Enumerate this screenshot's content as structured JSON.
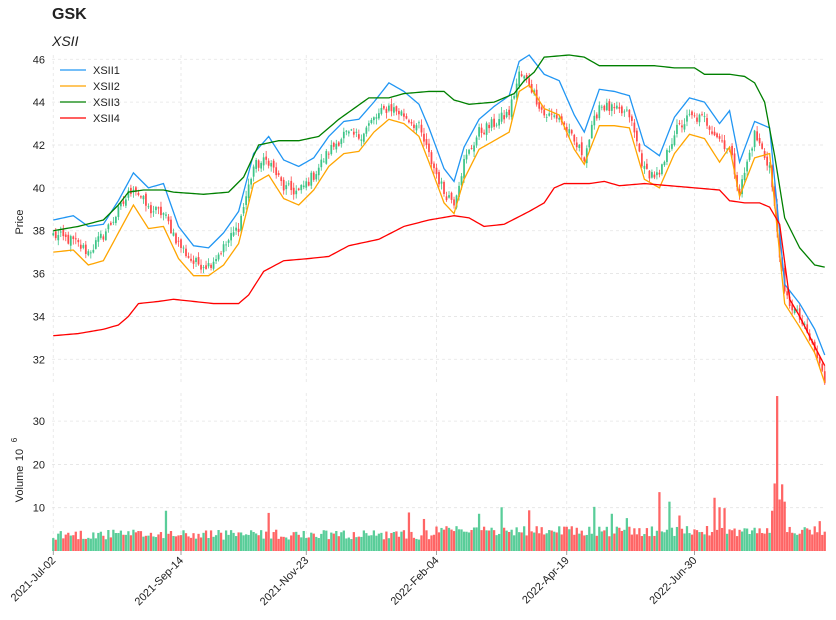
{
  "chart_data": {
    "type": "candlestick",
    "title": "GSK",
    "subtitle": "XSII",
    "price_panel": {
      "ylabel": "Price",
      "ylim": [
        30.8,
        46.2
      ],
      "yticks": [
        32,
        34,
        36,
        38,
        40,
        42,
        44,
        46
      ]
    },
    "volume_panel": {
      "ylabel": "Volume",
      "yexp": "6",
      "ylim": [
        0,
        36.5
      ],
      "yticks": [
        10,
        20,
        30
      ]
    },
    "x_tick_labels": [
      "2021-Jul-02",
      "2021-Sep-14",
      "2021-Nov-23",
      "2022-Feb-04",
      "2022-Apr-19",
      "2022-Jun-30"
    ],
    "x_tick_index": [
      0,
      51,
      101,
      153,
      205,
      256
    ],
    "n_bars": 309,
    "colors": {
      "up": "#3cc487",
      "down": "#ff4a4a",
      "xsii1": "#2196f3",
      "xsii2": "#ffa500",
      "xsii3": "#008000",
      "xsii4": "#ff0000"
    },
    "close_anchors": [
      [
        0,
        37.8
      ],
      [
        8,
        37.5
      ],
      [
        14,
        37.0
      ],
      [
        20,
        37.8
      ],
      [
        26,
        38.9
      ],
      [
        32,
        40.1
      ],
      [
        38,
        39.0
      ],
      [
        44,
        38.8
      ],
      [
        50,
        37.4
      ],
      [
        56,
        36.5
      ],
      [
        62,
        36.4
      ],
      [
        68,
        37.2
      ],
      [
        74,
        38.2
      ],
      [
        80,
        41.0
      ],
      [
        86,
        41.3
      ],
      [
        92,
        40.0
      ],
      [
        98,
        39.8
      ],
      [
        104,
        40.6
      ],
      [
        110,
        41.7
      ],
      [
        116,
        42.5
      ],
      [
        122,
        42.4
      ],
      [
        128,
        43.2
      ],
      [
        134,
        43.8
      ],
      [
        140,
        43.4
      ],
      [
        146,
        42.8
      ],
      [
        150,
        41.5
      ],
      [
        156,
        39.8
      ],
      [
        160,
        39.4
      ],
      [
        164,
        41.2
      ],
      [
        170,
        42.6
      ],
      [
        176,
        43.0
      ],
      [
        182,
        43.5
      ],
      [
        186,
        45.3
      ],
      [
        190,
        44.9
      ],
      [
        196,
        43.4
      ],
      [
        202,
        43.3
      ],
      [
        208,
        42.1
      ],
      [
        212,
        41.5
      ],
      [
        218,
        43.9
      ],
      [
        224,
        43.6
      ],
      [
        230,
        43.4
      ],
      [
        236,
        40.8
      ],
      [
        242,
        40.5
      ],
      [
        248,
        42.6
      ],
      [
        254,
        43.3
      ],
      [
        260,
        43.2
      ],
      [
        266,
        42.3
      ],
      [
        270,
        41.8
      ],
      [
        274,
        39.8
      ],
      [
        280,
        42.5
      ],
      [
        286,
        41.0
      ],
      [
        292,
        35.0
      ],
      [
        298,
        33.9
      ],
      [
        304,
        32.4
      ],
      [
        308,
        31.0
      ]
    ],
    "series": [
      {
        "name": "XSII1",
        "anchors": [
          [
            0,
            38.5
          ],
          [
            8,
            38.7
          ],
          [
            14,
            38.2
          ],
          [
            20,
            38.3
          ],
          [
            26,
            39.4
          ],
          [
            32,
            40.7
          ],
          [
            38,
            40.0
          ],
          [
            44,
            40.2
          ],
          [
            50,
            38.2
          ],
          [
            56,
            37.3
          ],
          [
            62,
            37.2
          ],
          [
            68,
            37.9
          ],
          [
            74,
            38.9
          ],
          [
            80,
            41.6
          ],
          [
            86,
            42.4
          ],
          [
            92,
            41.3
          ],
          [
            98,
            41.0
          ],
          [
            104,
            41.4
          ],
          [
            110,
            42.4
          ],
          [
            116,
            43.1
          ],
          [
            122,
            43.2
          ],
          [
            128,
            44.0
          ],
          [
            134,
            44.9
          ],
          [
            140,
            44.5
          ],
          [
            146,
            43.9
          ],
          [
            150,
            42.8
          ],
          [
            156,
            40.9
          ],
          [
            160,
            40.3
          ],
          [
            164,
            41.9
          ],
          [
            170,
            43.2
          ],
          [
            176,
            43.8
          ],
          [
            182,
            44.3
          ],
          [
            186,
            45.9
          ],
          [
            190,
            46.2
          ],
          [
            196,
            45.3
          ],
          [
            202,
            45.0
          ],
          [
            208,
            43.4
          ],
          [
            212,
            42.6
          ],
          [
            218,
            44.6
          ],
          [
            224,
            44.5
          ],
          [
            230,
            44.3
          ],
          [
            236,
            42.0
          ],
          [
            242,
            41.5
          ],
          [
            248,
            43.3
          ],
          [
            254,
            44.2
          ],
          [
            260,
            44.0
          ],
          [
            266,
            43.0
          ],
          [
            270,
            43.6
          ],
          [
            274,
            41.2
          ],
          [
            280,
            43.1
          ],
          [
            286,
            42.8
          ],
          [
            292,
            35.5
          ],
          [
            298,
            34.6
          ],
          [
            304,
            33.4
          ],
          [
            308,
            32.2
          ]
        ]
      },
      {
        "name": "XSII2",
        "anchors": [
          [
            0,
            37.0
          ],
          [
            8,
            37.1
          ],
          [
            14,
            36.4
          ],
          [
            20,
            36.6
          ],
          [
            26,
            37.9
          ],
          [
            32,
            39.2
          ],
          [
            38,
            38.1
          ],
          [
            44,
            38.2
          ],
          [
            50,
            36.7
          ],
          [
            56,
            35.9
          ],
          [
            62,
            35.9
          ],
          [
            68,
            36.4
          ],
          [
            74,
            37.4
          ],
          [
            80,
            40.2
          ],
          [
            86,
            40.6
          ],
          [
            92,
            39.5
          ],
          [
            98,
            39.2
          ],
          [
            104,
            39.9
          ],
          [
            110,
            41.0
          ],
          [
            116,
            41.6
          ],
          [
            122,
            41.7
          ],
          [
            128,
            42.6
          ],
          [
            134,
            43.2
          ],
          [
            140,
            43.0
          ],
          [
            146,
            42.4
          ],
          [
            150,
            41.2
          ],
          [
            156,
            39.3
          ],
          [
            160,
            38.8
          ],
          [
            164,
            40.4
          ],
          [
            170,
            41.8
          ],
          [
            176,
            42.2
          ],
          [
            182,
            42.6
          ],
          [
            186,
            44.5
          ],
          [
            190,
            44.8
          ],
          [
            196,
            43.7
          ],
          [
            202,
            43.4
          ],
          [
            208,
            41.8
          ],
          [
            212,
            41.1
          ],
          [
            218,
            42.9
          ],
          [
            224,
            42.9
          ],
          [
            230,
            42.8
          ],
          [
            236,
            40.4
          ],
          [
            242,
            40.0
          ],
          [
            248,
            41.6
          ],
          [
            254,
            42.5
          ],
          [
            260,
            42.3
          ],
          [
            266,
            41.2
          ],
          [
            270,
            41.9
          ],
          [
            274,
            39.6
          ],
          [
            280,
            41.4
          ],
          [
            286,
            41.6
          ],
          [
            292,
            34.6
          ],
          [
            298,
            33.5
          ],
          [
            304,
            32.3
          ],
          [
            308,
            30.9
          ]
        ]
      },
      {
        "name": "XSII3",
        "anchors": [
          [
            0,
            38.0
          ],
          [
            10,
            38.2
          ],
          [
            20,
            38.5
          ],
          [
            26,
            39.2
          ],
          [
            30,
            39.8
          ],
          [
            36,
            39.9
          ],
          [
            44,
            39.9
          ],
          [
            48,
            39.8
          ],
          [
            60,
            39.7
          ],
          [
            70,
            39.8
          ],
          [
            76,
            40.5
          ],
          [
            82,
            42.0
          ],
          [
            90,
            42.2
          ],
          [
            98,
            42.2
          ],
          [
            106,
            42.4
          ],
          [
            114,
            43.2
          ],
          [
            120,
            43.7
          ],
          [
            126,
            44.2
          ],
          [
            134,
            44.2
          ],
          [
            140,
            44.4
          ],
          [
            150,
            44.5
          ],
          [
            156,
            44.5
          ],
          [
            160,
            44.1
          ],
          [
            166,
            43.9
          ],
          [
            176,
            44.0
          ],
          [
            184,
            44.4
          ],
          [
            188,
            45.0
          ],
          [
            192,
            45.4
          ],
          [
            196,
            46.1
          ],
          [
            206,
            46.2
          ],
          [
            212,
            46.1
          ],
          [
            218,
            45.7
          ],
          [
            228,
            45.7
          ],
          [
            240,
            45.7
          ],
          [
            248,
            45.6
          ],
          [
            256,
            45.6
          ],
          [
            260,
            45.3
          ],
          [
            270,
            45.3
          ],
          [
            276,
            45.2
          ],
          [
            280,
            44.9
          ],
          [
            284,
            44.0
          ],
          [
            288,
            41.5
          ],
          [
            292,
            38.6
          ],
          [
            298,
            37.2
          ],
          [
            304,
            36.4
          ],
          [
            308,
            36.3
          ]
        ]
      },
      {
        "name": "XSII4",
        "anchors": [
          [
            0,
            33.1
          ],
          [
            10,
            33.2
          ],
          [
            20,
            33.4
          ],
          [
            26,
            33.6
          ],
          [
            30,
            34.0
          ],
          [
            34,
            34.6
          ],
          [
            42,
            34.7
          ],
          [
            48,
            34.8
          ],
          [
            56,
            34.7
          ],
          [
            64,
            34.6
          ],
          [
            74,
            34.6
          ],
          [
            78,
            35.0
          ],
          [
            84,
            36.1
          ],
          [
            92,
            36.6
          ],
          [
            102,
            36.7
          ],
          [
            110,
            36.8
          ],
          [
            118,
            37.3
          ],
          [
            126,
            37.5
          ],
          [
            130,
            37.6
          ],
          [
            140,
            38.2
          ],
          [
            150,
            38.5
          ],
          [
            160,
            38.7
          ],
          [
            166,
            38.6
          ],
          [
            172,
            38.2
          ],
          [
            180,
            38.3
          ],
          [
            190,
            38.9
          ],
          [
            196,
            39.3
          ],
          [
            200,
            40.0
          ],
          [
            204,
            40.2
          ],
          [
            214,
            40.2
          ],
          [
            220,
            40.3
          ],
          [
            226,
            40.1
          ],
          [
            236,
            40.2
          ],
          [
            246,
            40.1
          ],
          [
            256,
            40.0
          ],
          [
            266,
            39.9
          ],
          [
            270,
            39.4
          ],
          [
            276,
            39.3
          ],
          [
            282,
            39.3
          ],
          [
            286,
            39.1
          ],
          [
            290,
            38.3
          ],
          [
            294,
            34.8
          ],
          [
            298,
            34.0
          ],
          [
            304,
            32.6
          ],
          [
            308,
            31.7
          ]
        ]
      }
    ],
    "legend": [
      "XSII1",
      "XSII2",
      "XSII3",
      "XSII4"
    ],
    "volume_baseline": 3.8,
    "volume_spikes": [
      [
        45,
        9.3
      ],
      [
        86,
        8.8
      ],
      [
        142,
        8.9
      ],
      [
        148,
        7.4
      ],
      [
        170,
        8.6
      ],
      [
        179,
        10.1
      ],
      [
        190,
        9.4
      ],
      [
        216,
        10.2
      ],
      [
        223,
        8.6
      ],
      [
        229,
        7.6
      ],
      [
        242,
        13.6
      ],
      [
        246,
        11.4
      ],
      [
        250,
        8.2
      ],
      [
        264,
        12.3
      ],
      [
        266,
        10.1
      ],
      [
        268,
        9.9
      ],
      [
        287,
        9.3
      ],
      [
        288,
        15.6
      ],
      [
        289,
        35.8
      ],
      [
        290,
        11.9
      ],
      [
        291,
        15.4
      ],
      [
        292,
        11.4
      ],
      [
        300,
        5.5
      ],
      [
        306,
        6.9
      ]
    ]
  }
}
